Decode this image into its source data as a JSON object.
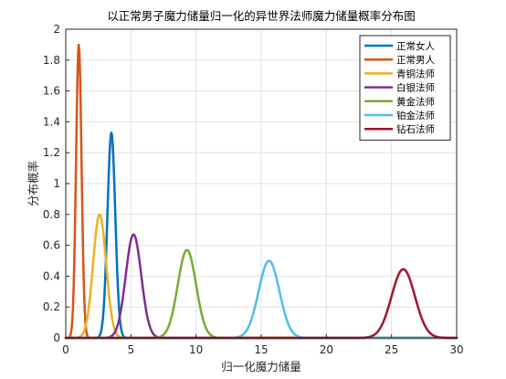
{
  "chart_data": {
    "type": "line",
    "title": "以正常男子魔力储量归一化的异世界法师魔力储量概率分布图",
    "xlabel": "归一化魔力储量",
    "ylabel": "分布概率",
    "xlim": [
      0,
      30
    ],
    "ylim": [
      0,
      2
    ],
    "xticks": [
      0,
      5,
      10,
      15,
      20,
      25,
      30
    ],
    "yticks": [
      0,
      0.2,
      0.4,
      0.6,
      0.8,
      1,
      1.2,
      1.4,
      1.6,
      1.8,
      2
    ],
    "xtick_labels": [
      "0",
      "5",
      "10",
      "15",
      "20",
      "25",
      "30"
    ],
    "ytick_labels": [
      "0",
      "0.2",
      "0.4",
      "0.6",
      "0.8",
      "1",
      "1.2",
      "1.4",
      "1.6",
      "1.8",
      "2"
    ],
    "grid": true,
    "legend_position": "top-right",
    "series": [
      {
        "name": "正常女人",
        "color": "#0072BD",
        "mean": 3.5,
        "peak": 1.33
      },
      {
        "name": "正常男人",
        "color": "#D95319",
        "mean": 1.0,
        "peak": 1.9
      },
      {
        "name": "青铜法师",
        "color": "#EDB120",
        "mean": 2.6,
        "peak": 0.8
      },
      {
        "name": "白银法师",
        "color": "#7E2F8E",
        "mean": 5.2,
        "peak": 0.67
      },
      {
        "name": "黄金法师",
        "color": "#77AC30",
        "mean": 9.3,
        "peak": 0.57
      },
      {
        "name": "铂金法师",
        "color": "#4DBEEE",
        "mean": 15.6,
        "peak": 0.5
      },
      {
        "name": "钻石法师",
        "color": "#A2142F",
        "mean": 25.9,
        "peak": 0.445
      }
    ]
  }
}
